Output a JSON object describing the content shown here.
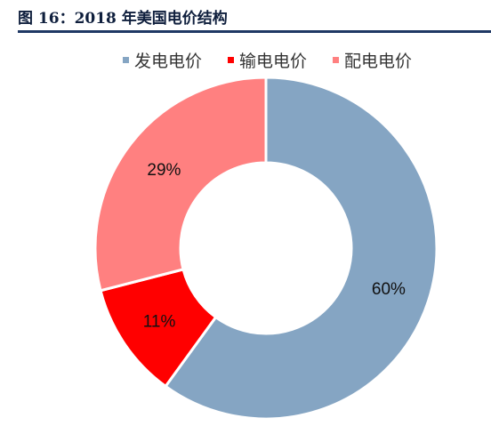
{
  "figure": {
    "title": "图 16：2018 年美国电价结构"
  },
  "chart_data": {
    "type": "pie",
    "style": "donut",
    "title": "图 16：2018 年美国电价结构",
    "legend_position": "top",
    "categories": [
      "发电电价",
      "输电电价",
      "配电电价"
    ],
    "values": [
      60,
      11,
      29
    ],
    "labels": [
      "60%",
      "11%",
      "29%"
    ],
    "colors": [
      "#85a5c3",
      "#ff0000",
      "#ff8080"
    ]
  }
}
